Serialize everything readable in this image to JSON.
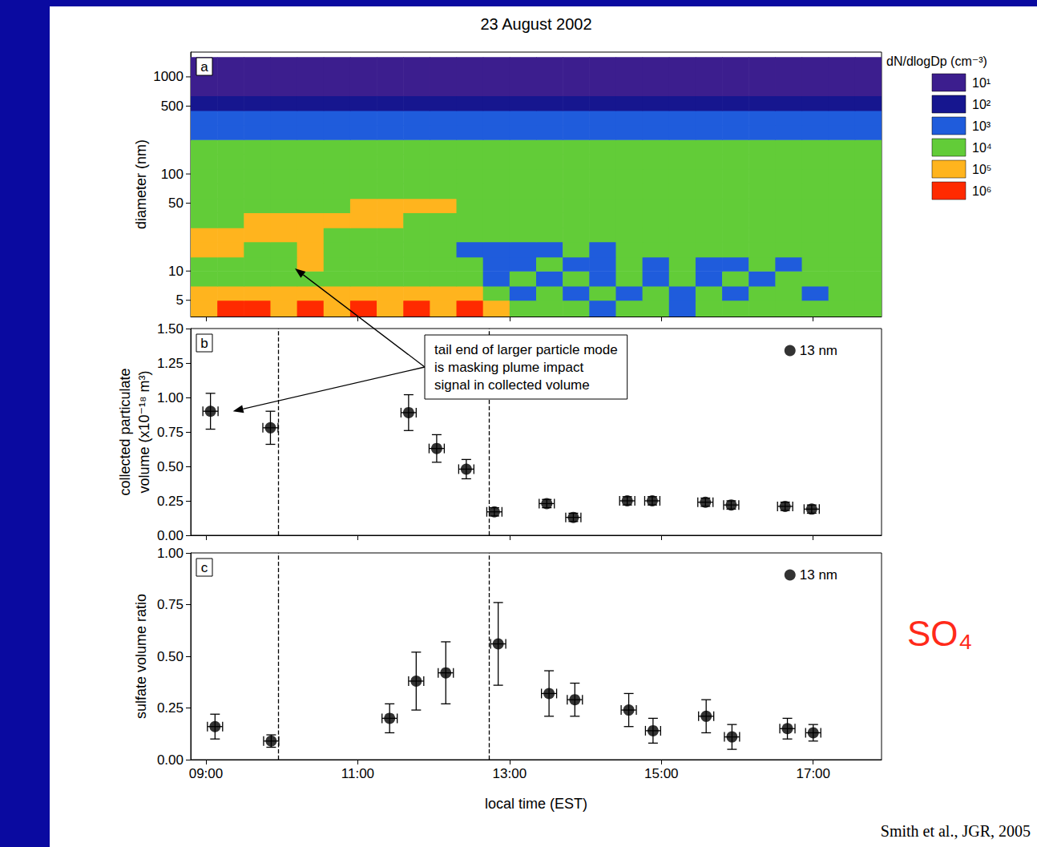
{
  "title": "23 August 2002",
  "source": "Smith et al., JGR, 2005",
  "chart_data": [
    {
      "type": "heatmap",
      "panel": "a",
      "title": "23 August 2002",
      "ylabel": "diameter (nm)",
      "log": "y",
      "grid": false,
      "tick_labels": "y",
      "xlim": [
        8.8,
        17.9
      ],
      "xticks": [
        {
          "value": 9,
          "label": "09:00"
        },
        {
          "value": 11,
          "label": "11:00"
        },
        {
          "value": 13,
          "label": "13:00"
        },
        {
          "value": 15,
          "label": "15:00"
        },
        {
          "value": 17,
          "label": "17:00"
        }
      ],
      "ylim": [
        3.4,
        1800
      ],
      "yticks": [
        5,
        10,
        50,
        100,
        500,
        1000
      ],
      "x_edges": [
        8.8,
        9.15,
        9.5,
        9.85,
        10.2,
        10.55,
        10.9,
        11.25,
        11.6,
        11.95,
        12.3,
        12.65,
        13.0,
        13.35,
        13.7,
        14.05,
        14.4,
        14.75,
        15.1,
        15.45,
        15.8,
        16.15,
        16.5,
        16.85,
        17.2,
        17.55,
        17.9
      ],
      "y_edges": [
        3.4,
        5,
        7,
        10,
        14,
        20,
        28,
        40,
        56,
        80,
        113,
        160,
        226,
        320,
        450,
        640,
        1600
      ],
      "cells": [
        [
          100000.0,
          1000000.0,
          1000000.0,
          100000.0,
          1000000.0,
          100000.0,
          1000000.0,
          100000.0,
          1000000.0,
          100000.0,
          1000000.0,
          100000.0,
          10000.0,
          10000.0,
          10000.0,
          1000.0,
          10000.0,
          10000.0,
          1000.0,
          10000.0,
          10000.0,
          10000.0,
          10000.0,
          10000.0,
          10000.0,
          10000.0
        ],
        [
          100000.0,
          100000.0,
          100000.0,
          100000.0,
          100000.0,
          100000.0,
          100000.0,
          100000.0,
          100000.0,
          100000.0,
          100000.0,
          10000.0,
          1000.0,
          10000.0,
          1000.0,
          10000.0,
          1000.0,
          10000.0,
          1000.0,
          10000.0,
          1000.0,
          10000.0,
          10000.0,
          1000.0,
          10000.0,
          10000.0
        ],
        [
          10000.0,
          10000.0,
          10000.0,
          10000.0,
          10000.0,
          10000.0,
          10000.0,
          10000.0,
          10000.0,
          10000.0,
          10000.0,
          1000.0,
          10000.0,
          1000.0,
          10000.0,
          1000.0,
          10000.0,
          1000.0,
          10000.0,
          1000.0,
          10000.0,
          1000.0,
          10000.0,
          10000.0,
          10000.0,
          10000.0
        ],
        [
          10000.0,
          10000.0,
          10000.0,
          10000.0,
          100000.0,
          10000.0,
          10000.0,
          10000.0,
          10000.0,
          10000.0,
          10000.0,
          1000.0,
          1000.0,
          10000.0,
          1000.0,
          1000.0,
          10000.0,
          1000.0,
          10000.0,
          1000.0,
          1000.0,
          10000.0,
          1000.0,
          10000.0,
          10000.0,
          10000.0
        ],
        [
          100000.0,
          100000.0,
          10000.0,
          10000.0,
          100000.0,
          10000.0,
          10000.0,
          10000.0,
          10000.0,
          10000.0,
          1000.0,
          1000.0,
          1000.0,
          1000.0,
          10000.0,
          1000.0,
          10000.0,
          10000.0,
          10000.0,
          10000.0,
          10000.0,
          10000.0,
          10000.0,
          10000.0,
          10000.0,
          10000.0
        ],
        [
          100000.0,
          100000.0,
          100000.0,
          100000.0,
          100000.0,
          10000.0,
          10000.0,
          10000.0,
          10000.0,
          10000.0,
          10000.0,
          10000.0,
          10000.0,
          10000.0,
          10000.0,
          10000.0,
          10000.0,
          10000.0,
          10000.0,
          10000.0,
          10000.0,
          10000.0,
          10000.0,
          10000.0,
          10000.0,
          10000.0
        ],
        [
          10000.0,
          10000.0,
          100000.0,
          100000.0,
          100000.0,
          100000.0,
          100000.0,
          100000.0,
          10000.0,
          10000.0,
          10000.0,
          10000.0,
          10000.0,
          10000.0,
          10000.0,
          10000.0,
          10000.0,
          10000.0,
          10000.0,
          10000.0,
          10000.0,
          10000.0,
          10000.0,
          10000.0,
          10000.0,
          10000.0
        ],
        [
          10000.0,
          10000.0,
          10000.0,
          10000.0,
          10000.0,
          10000.0,
          100000.0,
          100000.0,
          100000.0,
          100000.0,
          10000.0,
          10000.0,
          10000.0,
          10000.0,
          10000.0,
          10000.0,
          10000.0,
          10000.0,
          10000.0,
          10000.0,
          10000.0,
          10000.0,
          10000.0,
          10000.0,
          10000.0,
          10000.0
        ],
        [
          10000.0,
          10000.0,
          10000.0,
          10000.0,
          10000.0,
          10000.0,
          10000.0,
          10000.0,
          10000.0,
          10000.0,
          10000.0,
          10000.0,
          10000.0,
          10000.0,
          10000.0,
          10000.0,
          10000.0,
          10000.0,
          10000.0,
          10000.0,
          10000.0,
          10000.0,
          10000.0,
          10000.0,
          10000.0,
          10000.0
        ],
        [
          10000.0,
          10000.0,
          10000.0,
          10000.0,
          10000.0,
          10000.0,
          10000.0,
          10000.0,
          10000.0,
          10000.0,
          10000.0,
          10000.0,
          10000.0,
          10000.0,
          10000.0,
          10000.0,
          10000.0,
          10000.0,
          10000.0,
          10000.0,
          10000.0,
          10000.0,
          10000.0,
          10000.0,
          10000.0,
          10000.0
        ],
        [
          10000.0,
          10000.0,
          10000.0,
          10000.0,
          10000.0,
          10000.0,
          10000.0,
          10000.0,
          10000.0,
          10000.0,
          10000.0,
          10000.0,
          10000.0,
          10000.0,
          10000.0,
          10000.0,
          10000.0,
          10000.0,
          10000.0,
          10000.0,
          10000.0,
          10000.0,
          10000.0,
          10000.0,
          10000.0,
          10000.0
        ],
        [
          10000.0,
          10000.0,
          10000.0,
          10000.0,
          10000.0,
          10000.0,
          10000.0,
          10000.0,
          10000.0,
          10000.0,
          10000.0,
          10000.0,
          10000.0,
          10000.0,
          10000.0,
          10000.0,
          10000.0,
          10000.0,
          10000.0,
          10000.0,
          10000.0,
          10000.0,
          10000.0,
          10000.0,
          10000.0,
          10000.0
        ],
        [
          1000.0,
          1000.0,
          1000.0,
          1000.0,
          1000.0,
          1000.0,
          1000.0,
          1000.0,
          1000.0,
          1000.0,
          1000.0,
          1000.0,
          1000.0,
          1000.0,
          1000.0,
          1000.0,
          1000.0,
          1000.0,
          1000.0,
          1000.0,
          1000.0,
          1000.0,
          1000.0,
          1000.0,
          1000.0,
          1000.0
        ],
        [
          1000.0,
          1000.0,
          1000.0,
          1000.0,
          1000.0,
          1000.0,
          1000.0,
          1000.0,
          1000.0,
          1000.0,
          1000.0,
          1000.0,
          1000.0,
          1000.0,
          1000.0,
          1000.0,
          1000.0,
          1000.0,
          1000.0,
          1000.0,
          1000.0,
          1000.0,
          1000.0,
          1000.0,
          1000.0,
          1000.0
        ],
        [
          100.0,
          100.0,
          100.0,
          100.0,
          100.0,
          100.0,
          100.0,
          100.0,
          100.0,
          100.0,
          100.0,
          100.0,
          100.0,
          100.0,
          100.0,
          100.0,
          100.0,
          100.0,
          100.0,
          100.0,
          100.0,
          100.0,
          100.0,
          100.0,
          100.0,
          100.0
        ],
        [
          10.0,
          10.0,
          10.0,
          10.0,
          10.0,
          10.0,
          10.0,
          10.0,
          10.0,
          10.0,
          10.0,
          10.0,
          10.0,
          10.0,
          10.0,
          10.0,
          10.0,
          10.0,
          10.0,
          10.0,
          10.0,
          10.0,
          10.0,
          10.0,
          10.0,
          10.0
        ]
      ],
      "colorbar": {
        "label": "dN/dlogDp (cm⁻³)",
        "ticks": [
          {
            "value": 10,
            "label": "10¹"
          },
          {
            "value": 100,
            "label": "10²"
          },
          {
            "value": 1000,
            "label": "10³"
          },
          {
            "value": 10000,
            "label": "10⁴"
          },
          {
            "value": 100000,
            "label": "10⁵"
          },
          {
            "value": 1000000,
            "label": "10⁶"
          }
        ],
        "colors": [
          "#3c1e8e",
          "#16168f",
          "#1f5cdc",
          "#62cc38",
          "#ffb41e",
          "#ff2a00"
        ]
      }
    },
    {
      "type": "scatter",
      "panel": "b",
      "ylabel": "collected particulate volume (x10⁻¹⁸ m³)",
      "grid": false,
      "tick_labels": "y",
      "legend": "upper right",
      "xlim": [
        8.8,
        17.9
      ],
      "xticks": [
        {
          "value": 9,
          "label": "09:00"
        },
        {
          "value": 11,
          "label": "11:00"
        },
        {
          "value": 13,
          "label": "13:00"
        },
        {
          "value": 15,
          "label": "15:00"
        },
        {
          "value": 17,
          "label": "17:00"
        }
      ],
      "ylim": [
        0,
        1.5
      ],
      "yticks": [
        {
          "value": 0,
          "label": "0.00"
        },
        {
          "value": 0.25,
          "label": "0.25"
        },
        {
          "value": 0.5,
          "label": "0.50"
        },
        {
          "value": 0.75,
          "label": "0.75"
        },
        {
          "value": 1,
          "label": "1.00"
        },
        {
          "value": 1.25,
          "label": "1.25"
        },
        {
          "value": 1.5,
          "label": "1.50"
        }
      ],
      "vlines": [
        9.95,
        12.73
      ],
      "annotations": [
        "tail end of larger particle mode\nis masking plume impact\nsignal in collected volume"
      ],
      "series": [
        {
          "name": "13 nm",
          "color": "#000000",
          "marker": "circle",
          "x": [
            9.06,
            9.85,
            11.67,
            12.04,
            12.43,
            12.8,
            13.49,
            13.84,
            14.55,
            14.88,
            15.58,
            15.92,
            16.63,
            16.98
          ],
          "values": [
            0.9,
            0.78,
            0.89,
            0.63,
            0.48,
            0.17,
            0.23,
            0.13,
            0.25,
            0.25,
            0.24,
            0.22,
            0.21,
            0.19
          ],
          "yerr": [
            0.13,
            0.12,
            0.13,
            0.1,
            0.07,
            0.03,
            0.03,
            0.03,
            0.03,
            0.03,
            0.03,
            0.03,
            0.03,
            0.03
          ],
          "xerr": [
            0.1,
            0.1,
            0.1,
            0.1,
            0.1,
            0.1,
            0.1,
            0.1,
            0.1,
            0.1,
            0.1,
            0.1,
            0.1,
            0.1
          ]
        }
      ]
    },
    {
      "type": "scatter",
      "panel": "c",
      "ylabel": "sulfate volume ratio",
      "xlabel": "local time (EST)",
      "grid": false,
      "tick_labels": true,
      "legend": "upper right",
      "xlim": [
        8.8,
        17.9
      ],
      "xticks": [
        {
          "value": 9,
          "label": "09:00"
        },
        {
          "value": 11,
          "label": "11:00"
        },
        {
          "value": 13,
          "label": "13:00"
        },
        {
          "value": 15,
          "label": "15:00"
        },
        {
          "value": 17,
          "label": "17:00"
        }
      ],
      "ylim": [
        0,
        1
      ],
      "yticks": [
        {
          "value": 0,
          "label": "0.00"
        },
        {
          "value": 0.25,
          "label": "0.25"
        },
        {
          "value": 0.5,
          "label": "0.50"
        },
        {
          "value": 0.75,
          "label": "0.75"
        },
        {
          "value": 1,
          "label": "1.00"
        }
      ],
      "vlines": [
        9.95,
        12.73
      ],
      "annotations": [
        "SO₄"
      ],
      "series": [
        {
          "name": "13 nm",
          "color": "#000000",
          "marker": "circle",
          "x": [
            9.12,
            9.86,
            11.42,
            11.77,
            12.16,
            12.85,
            13.52,
            13.86,
            14.57,
            14.89,
            15.59,
            15.93,
            16.66,
            17.0
          ],
          "values": [
            0.16,
            0.09,
            0.2,
            0.38,
            0.42,
            0.56,
            0.32,
            0.29,
            0.24,
            0.14,
            0.21,
            0.11,
            0.15,
            0.13
          ],
          "yerr": [
            0.06,
            0.03,
            0.07,
            0.14,
            0.15,
            0.2,
            0.11,
            0.08,
            0.08,
            0.06,
            0.08,
            0.06,
            0.05,
            0.04
          ],
          "xerr": [
            0.1,
            0.1,
            0.1,
            0.1,
            0.1,
            0.1,
            0.1,
            0.1,
            0.1,
            0.1,
            0.1,
            0.1,
            0.1,
            0.1
          ]
        }
      ]
    }
  ]
}
